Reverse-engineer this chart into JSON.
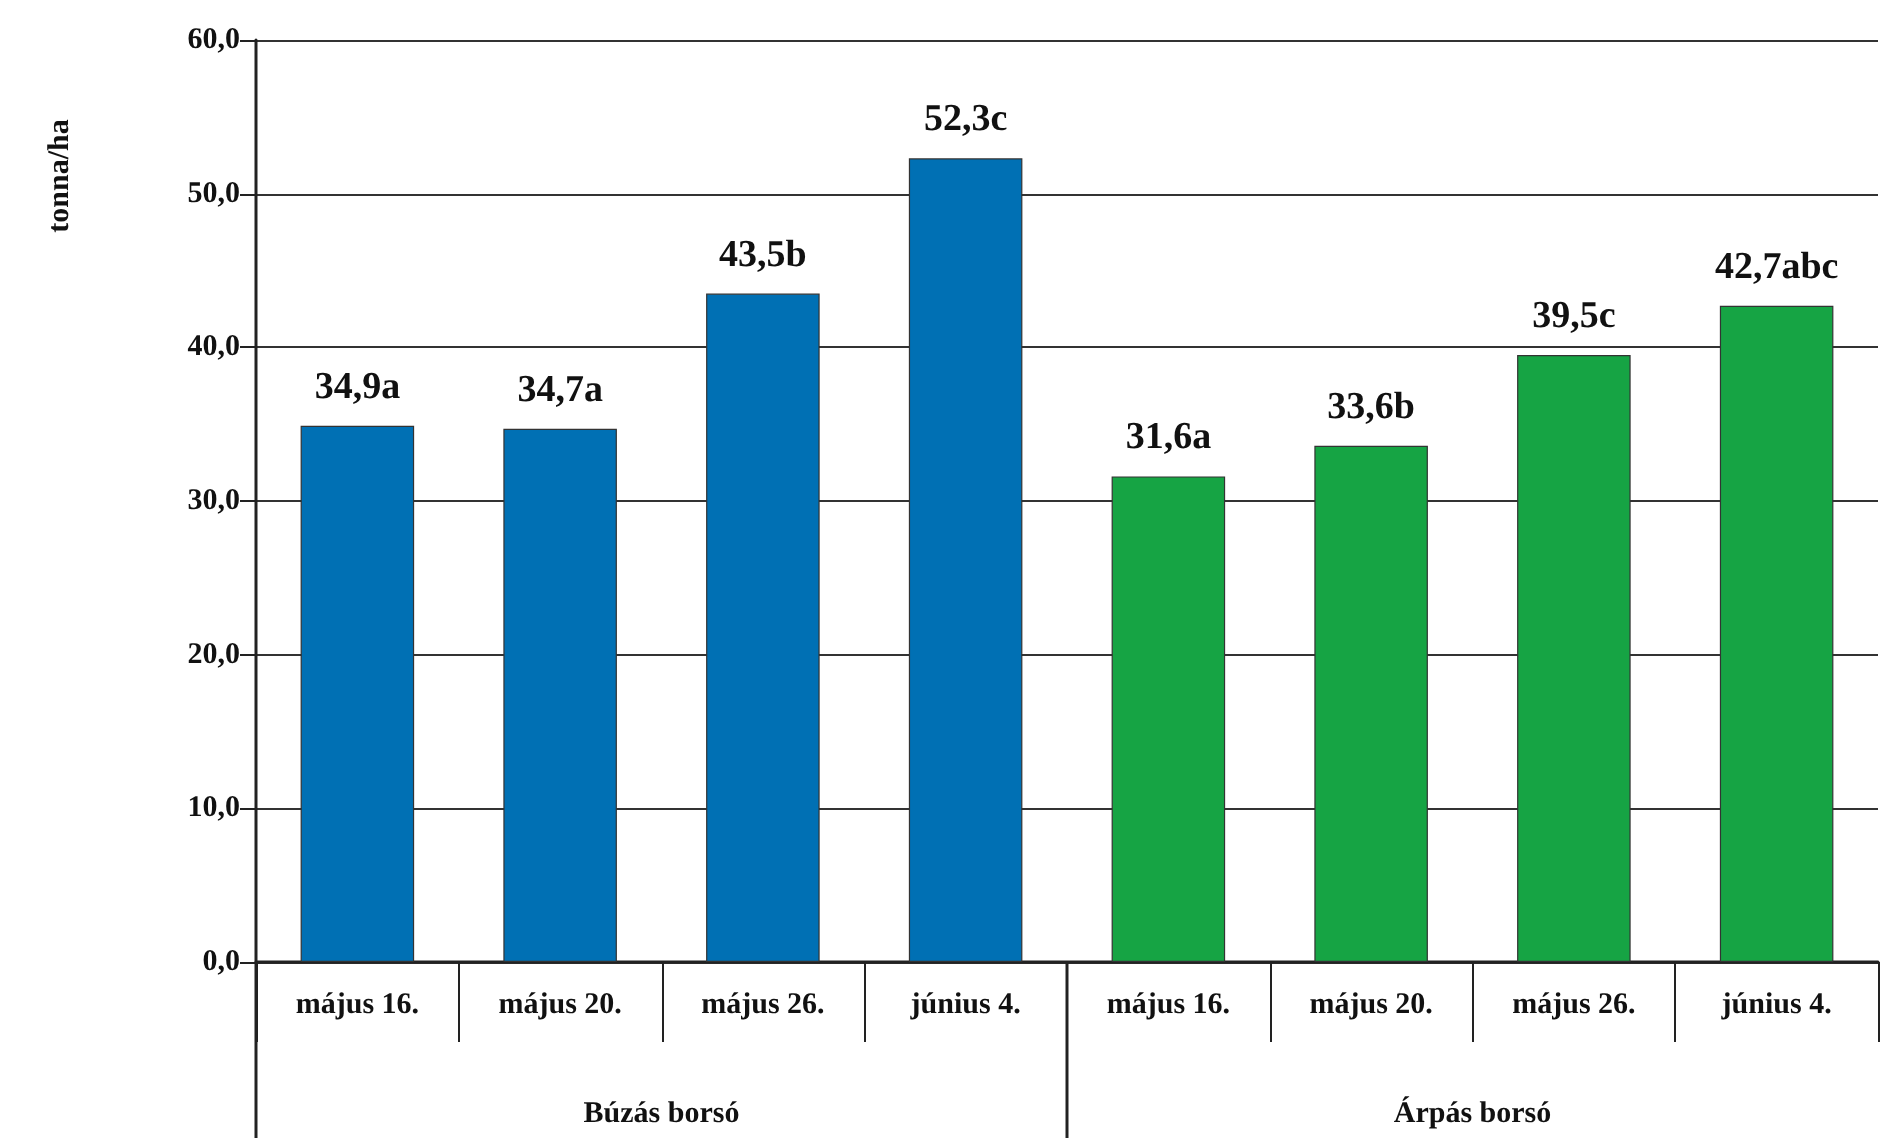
{
  "chart_data": {
    "type": "bar",
    "ylabel": "tonna/ha",
    "categories": [
      "május 16.",
      "május 20.",
      "május 26.",
      "június 4.",
      "május 16.",
      "május 20.",
      "május 26.",
      "június 4."
    ],
    "values": [
      34.9,
      34.7,
      43.5,
      52.3,
      31.6,
      33.6,
      39.5,
      42.7
    ],
    "colors": [
      "#0070b4",
      "#0070b4",
      "#0070b4",
      "#0070b4",
      "#16a444",
      "#16a444",
      "#16a444",
      "#16a444"
    ],
    "value_labels": [
      "34,9a",
      "34,7a",
      "43,5b",
      "52,3c",
      "31,6a",
      "33,6b",
      "39,5c",
      "42,7abc"
    ],
    "annotations": [
      "Búzás borsó",
      "Árpás borsó"
    ],
    "ylim": [
      0,
      60
    ],
    "yticks": [
      {
        "value": 0,
        "label": "0,0"
      },
      {
        "value": 10,
        "label": "10,0"
      },
      {
        "value": 20,
        "label": "20,0"
      },
      {
        "value": 30,
        "label": "30,0"
      },
      {
        "value": 40,
        "label": "40,0"
      },
      {
        "value": 50,
        "label": "50,0"
      },
      {
        "value": 60,
        "label": "60,0"
      }
    ],
    "grid": "y"
  }
}
